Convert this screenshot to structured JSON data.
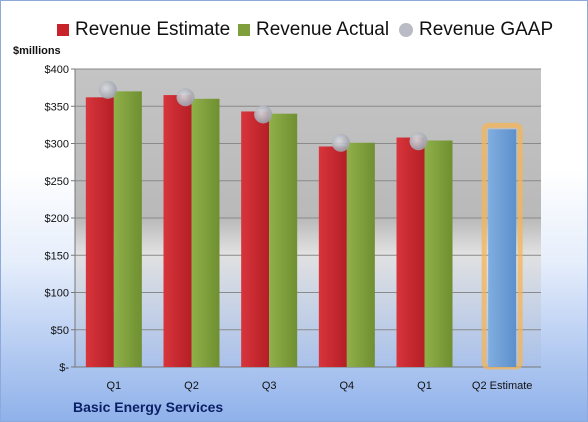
{
  "chart_data": {
    "type": "bar",
    "title": "",
    "ylabel": "$millions",
    "xlabel": "",
    "categories": [
      "Q1",
      "Q2",
      "Q3",
      "Q4",
      "Q1",
      "Q2 Estimate"
    ],
    "series": [
      {
        "name": "Revenue Estimate",
        "color": "#c8232b",
        "values": [
          362,
          365,
          343,
          296,
          308,
          null
        ]
      },
      {
        "name": "Revenue Actual",
        "color": "#7f9f3c",
        "values": [
          370,
          360,
          340,
          301,
          304,
          null
        ]
      },
      {
        "name": "Revenue GAAP",
        "color": "#b9bcc4",
        "marker": "circle",
        "values": [
          372,
          362,
          339,
          301,
          303,
          null
        ]
      },
      {
        "name": "",
        "color": "#6e9fd6",
        "highlight": "#f5b455",
        "values": [
          null,
          null,
          null,
          null,
          null,
          319
        ]
      }
    ],
    "ylim": [
      0,
      400
    ],
    "yticks": [
      0,
      50,
      100,
      150,
      200,
      250,
      300,
      350,
      400
    ],
    "ytick_labels": [
      "$-",
      "$50",
      "$100",
      "$150",
      "$200",
      "$250",
      "$300",
      "$350",
      "$400"
    ],
    "grid": true,
    "legend": "top",
    "plot_background": "#c0c0c0"
  },
  "legend_labels": [
    "Revenue Estimate",
    "Revenue Actual",
    "Revenue GAAP"
  ],
  "unit_label": "$millions",
  "company": "Basic Energy Services"
}
